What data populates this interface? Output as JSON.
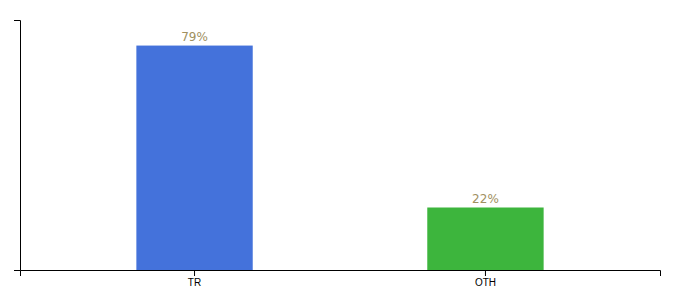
{
  "chart_data": {
    "type": "bar",
    "categories": [
      "TR",
      "OTH"
    ],
    "values": [
      79,
      22
    ],
    "colors": [
      "#4472db",
      "#3db53d"
    ],
    "value_labels": [
      "79%",
      "22%"
    ],
    "data_labels": true,
    "ylim": [
      0,
      88
    ],
    "yticks": [],
    "tick_labels": "x"
  }
}
